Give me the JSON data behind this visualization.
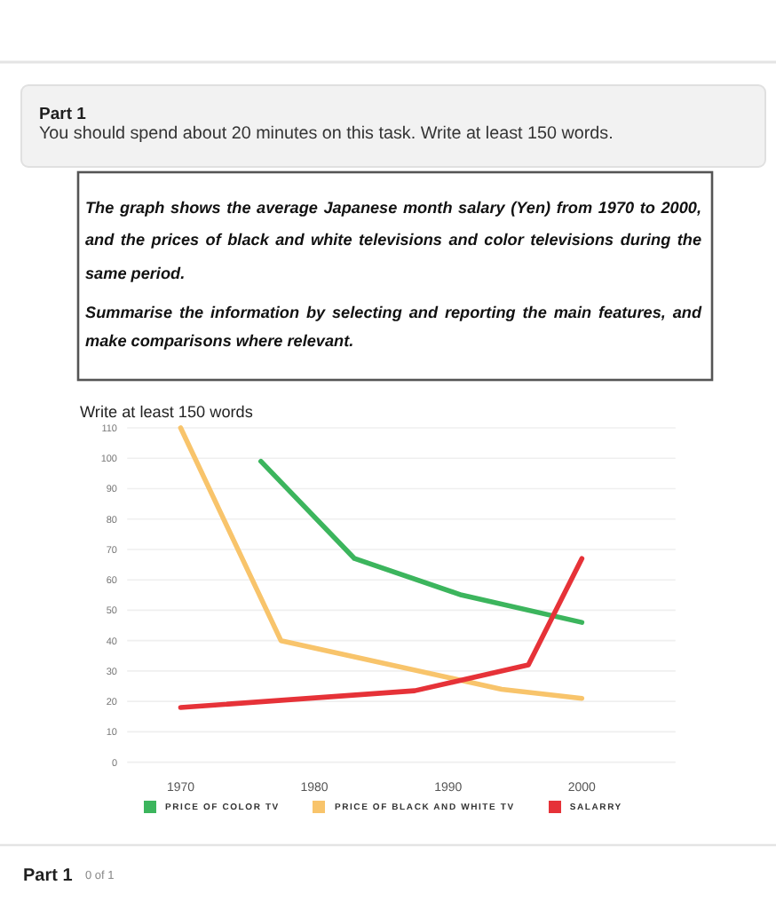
{
  "chart_data": {
    "type": "line",
    "title": "Write at least 150 words",
    "annotations": [
      "Part 1",
      "You should spend about 20 minutes on this task. Write at least 150 words.",
      "The graph shows the average Japanese month salary (Yen) from 1970 to 2000, and the prices of black and white televisions and color televisions during the same period.",
      "Summarise the information by selecting and reporting the main features, and make comparisons where relevant.",
      "Part 1",
      "0 of 1"
    ],
    "xlim": [
      1966,
      2007
    ],
    "xticks": [
      1970,
      1980,
      1990,
      2000
    ],
    "ylim": [
      0,
      110
    ],
    "yticks": [
      0,
      10,
      20,
      30,
      40,
      50,
      60,
      70,
      80,
      90,
      100,
      110
    ],
    "grid": "y",
    "legend": "bottom",
    "series": [
      {
        "name": "PRICE OF COLOR TV",
        "color": "#3cb55d",
        "x": [
          1976,
          1983,
          1991,
          2000
        ],
        "values": [
          99,
          67,
          55,
          46
        ]
      },
      {
        "name": "PRICE OF BLACK AND WHITE TV",
        "color": "#f8c46b",
        "x": [
          1970,
          1977.5,
          1994,
          2000
        ],
        "values": [
          110,
          40,
          24,
          21
        ]
      },
      {
        "name": "SALARRY",
        "color": "#e63238",
        "x": [
          1970,
          1987.5,
          1996,
          2000
        ],
        "values": [
          18,
          23.5,
          32,
          67
        ]
      }
    ]
  }
}
